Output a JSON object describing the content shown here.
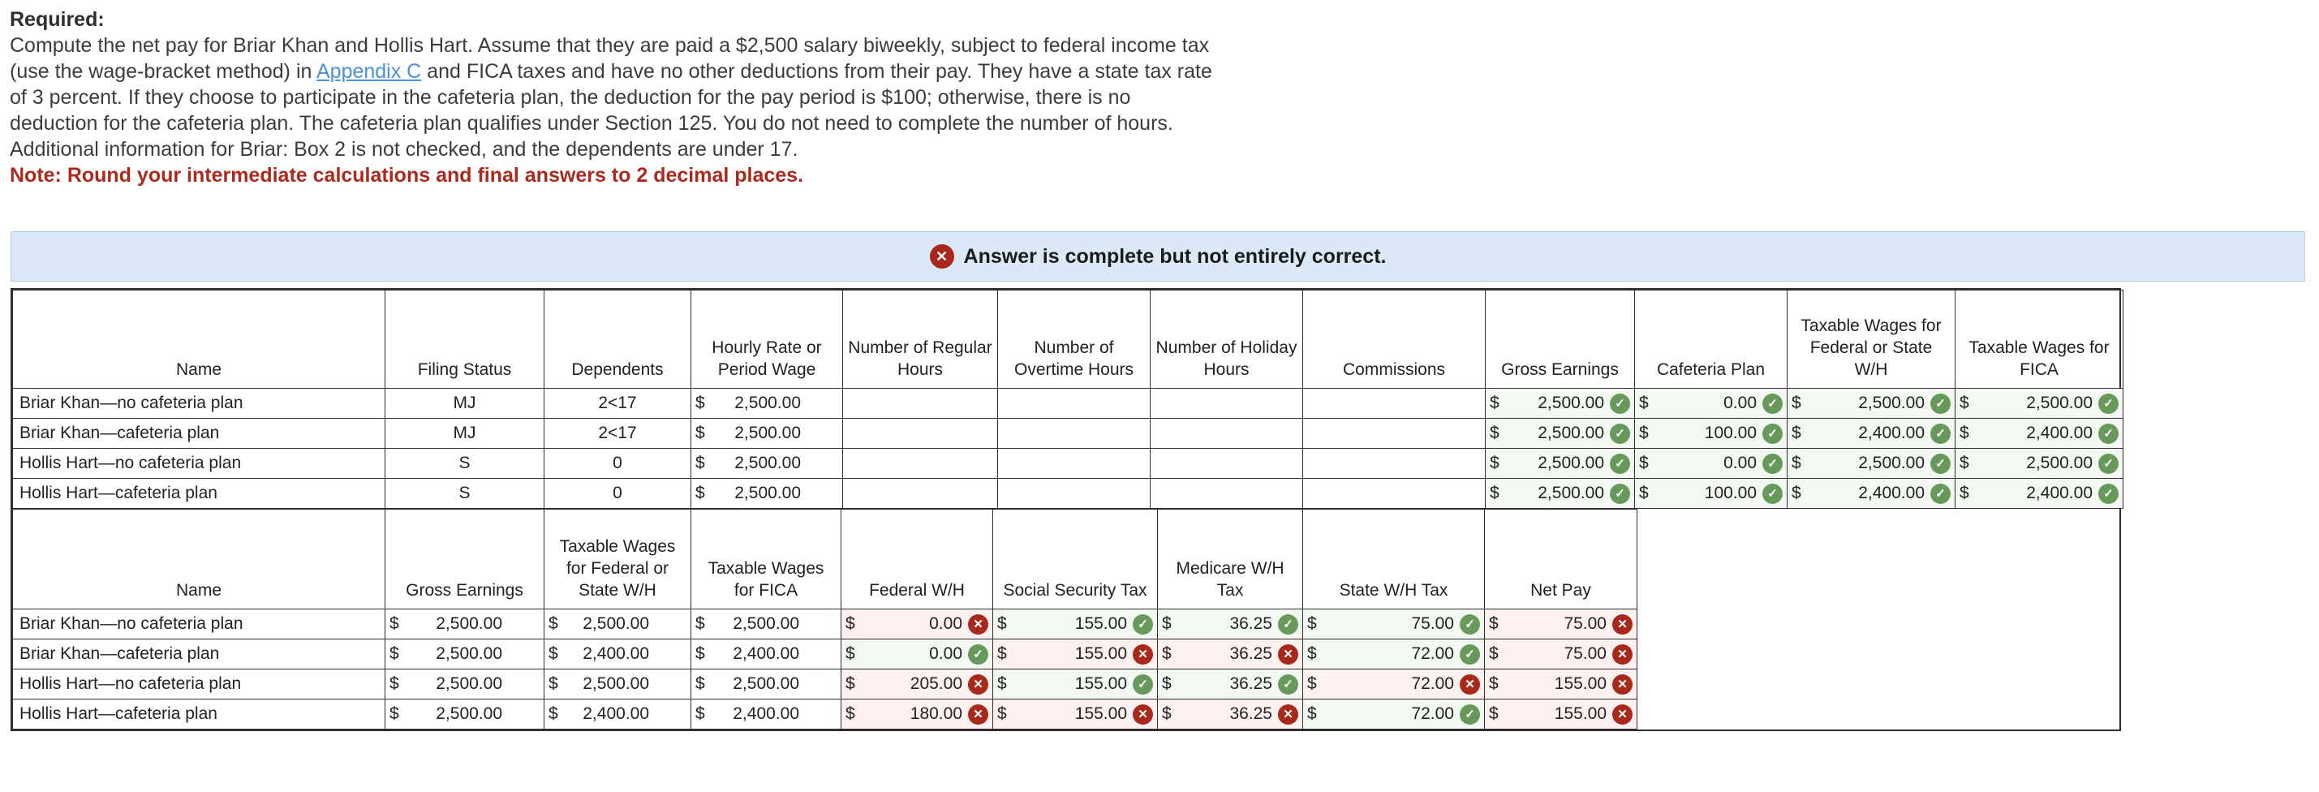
{
  "currency_symbol": "$",
  "instructions": {
    "required_label": "Required:",
    "line1": "Compute the net pay for Briar Khan and Hollis Hart. Assume that they are paid a $2,500 salary biweekly, subject to federal income tax",
    "line2_before": "(use the wage-bracket method) in ",
    "line2_link": "Appendix C",
    "line2_after": " and FICA taxes and have no other deductions from their pay. They have a state tax rate",
    "line3": "of 3 percent. If they choose to participate in the cafeteria plan, the deduction for the pay period is $100; otherwise, there is no",
    "line4": "deduction for the cafeteria plan. The cafeteria plan qualifies under Section 125. You do not need to complete the number of hours.",
    "line5": "Additional information for Briar: Box 2 is not checked, and the dependents are under 17.",
    "note": "Note: Round your intermediate calculations and final answers to 2 decimal places."
  },
  "banner": {
    "icon": "x-circle",
    "text": "Answer is complete but not entirely correct."
  },
  "colors": {
    "correct_green": "#67995b",
    "incorrect_red": "#a8291c",
    "correct_cell_bg": "#f4f8f2",
    "incorrect_cell_bg": "#fdf1f0",
    "banner_bg": "#dbe9f7",
    "link_blue": "#4a90d9",
    "note_red": "#ab2a1e"
  },
  "table1": {
    "headers": [
      "Name",
      "Filing Status",
      "Dependents",
      "Hourly Rate or Period Wage",
      "Number of Regular Hours",
      "Number of Overtime Hours",
      "Number of Holiday Hours",
      "Commissions",
      "Gross Earnings",
      "Cafeteria Plan",
      "Taxable Wages for Federal or State W/H",
      "Taxable Wages for FICA"
    ],
    "rows": [
      {
        "name": "Briar Khan—no cafeteria plan",
        "filing_status": "MJ",
        "dependents": "2<17",
        "wage": "2,500.00",
        "gross": {
          "v": "2,500.00",
          "mark": "check"
        },
        "cafeteria": {
          "v": "0.00",
          "mark": "check"
        },
        "taxable_fed_state": {
          "v": "2,500.00",
          "mark": "check"
        },
        "taxable_fica": {
          "v": "2,500.00",
          "mark": "check"
        }
      },
      {
        "name": "Briar Khan—cafeteria plan",
        "filing_status": "MJ",
        "dependents": "2<17",
        "wage": "2,500.00",
        "gross": {
          "v": "2,500.00",
          "mark": "check"
        },
        "cafeteria": {
          "v": "100.00",
          "mark": "check"
        },
        "taxable_fed_state": {
          "v": "2,400.00",
          "mark": "check"
        },
        "taxable_fica": {
          "v": "2,400.00",
          "mark": "check"
        }
      },
      {
        "name": "Hollis Hart—no cafeteria plan",
        "filing_status": "S",
        "dependents": "0",
        "wage": "2,500.00",
        "gross": {
          "v": "2,500.00",
          "mark": "check"
        },
        "cafeteria": {
          "v": "0.00",
          "mark": "check"
        },
        "taxable_fed_state": {
          "v": "2,500.00",
          "mark": "check"
        },
        "taxable_fica": {
          "v": "2,500.00",
          "mark": "check"
        }
      },
      {
        "name": "Hollis Hart—cafeteria plan",
        "filing_status": "S",
        "dependents": "0",
        "wage": "2,500.00",
        "gross": {
          "v": "2,500.00",
          "mark": "check"
        },
        "cafeteria": {
          "v": "100.00",
          "mark": "check"
        },
        "taxable_fed_state": {
          "v": "2,400.00",
          "mark": "check"
        },
        "taxable_fica": {
          "v": "2,400.00",
          "mark": "check"
        }
      }
    ]
  },
  "table2": {
    "headers": [
      "Name",
      "Gross Earnings",
      "Taxable Wages for Federal or State W/H",
      "Taxable Wages for FICA",
      "Federal W/H",
      "Social Security Tax",
      "Medicare W/H Tax",
      "State W/H Tax",
      "Net Pay"
    ],
    "rows": [
      {
        "name": "Briar Khan—no cafeteria plan",
        "gross": "2,500.00",
        "taxable_fed_state": "2,500.00",
        "taxable_fica": "2,500.00",
        "federal_wh": {
          "v": "0.00",
          "mark": "x"
        },
        "social_security": {
          "v": "155.00",
          "mark": "check"
        },
        "medicare": {
          "v": "36.25",
          "mark": "check"
        },
        "state_wh": {
          "v": "75.00",
          "mark": "check"
        },
        "net_pay": {
          "v": "75.00",
          "mark": "x"
        }
      },
      {
        "name": "Briar Khan—cafeteria plan",
        "gross": "2,500.00",
        "taxable_fed_state": "2,400.00",
        "taxable_fica": "2,400.00",
        "federal_wh": {
          "v": "0.00",
          "mark": "check"
        },
        "social_security": {
          "v": "155.00",
          "mark": "x"
        },
        "medicare": {
          "v": "36.25",
          "mark": "x"
        },
        "state_wh": {
          "v": "72.00",
          "mark": "check"
        },
        "net_pay": {
          "v": "75.00",
          "mark": "x"
        }
      },
      {
        "name": "Hollis Hart—no cafeteria plan",
        "gross": "2,500.00",
        "taxable_fed_state": "2,500.00",
        "taxable_fica": "2,500.00",
        "federal_wh": {
          "v": "205.00",
          "mark": "x"
        },
        "social_security": {
          "v": "155.00",
          "mark": "check"
        },
        "medicare": {
          "v": "36.25",
          "mark": "check"
        },
        "state_wh": {
          "v": "72.00",
          "mark": "x"
        },
        "net_pay": {
          "v": "155.00",
          "mark": "x"
        }
      },
      {
        "name": "Hollis Hart—cafeteria plan",
        "gross": "2,500.00",
        "taxable_fed_state": "2,400.00",
        "taxable_fica": "2,400.00",
        "federal_wh": {
          "v": "180.00",
          "mark": "x"
        },
        "social_security": {
          "v": "155.00",
          "mark": "x"
        },
        "medicare": {
          "v": "36.25",
          "mark": "x"
        },
        "state_wh": {
          "v": "72.00",
          "mark": "check"
        },
        "net_pay": {
          "v": "155.00",
          "mark": "x"
        }
      }
    ]
  }
}
